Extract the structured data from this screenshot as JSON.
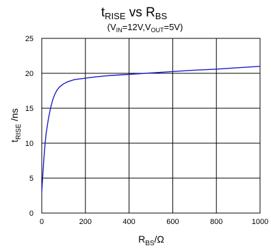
{
  "chart_data": {
    "type": "line",
    "title": {
      "base": "t",
      "sub": "RISE",
      "text": " vs R",
      "sub2": "BS"
    },
    "subtitle": {
      "p1": "(V",
      "s1": "IN",
      "p2": "=12V,V",
      "s2": "OUT",
      "p3": "=5V)"
    },
    "xlabel": {
      "base": "R",
      "sub": "BS",
      "rest": "/Ω"
    },
    "ylabel": {
      "base": "t",
      "sub": "RISE",
      "rest": " /ns"
    },
    "xlim": [
      0,
      1000
    ],
    "ylim": [
      0,
      25
    ],
    "x_ticks": [
      "0",
      "200",
      "400",
      "600",
      "800",
      "1000"
    ],
    "y_ticks": [
      "0",
      "5",
      "10",
      "15",
      "20",
      "25"
    ],
    "x_tick_values": [
      0,
      200,
      400,
      600,
      800,
      1000
    ],
    "y_tick_values": [
      0,
      5,
      10,
      15,
      20,
      25
    ],
    "grid": true,
    "line_color": "#1a1acc",
    "series": [
      {
        "x": [
          0,
          5,
          10,
          15,
          20,
          30,
          40,
          50,
          60,
          70,
          80,
          100,
          120,
          150,
          200,
          250,
          300,
          350,
          400,
          450,
          500,
          600,
          700,
          800,
          900,
          1000
        ],
        "y": [
          3.0,
          5.5,
          7.9,
          9.8,
          11.4,
          13.4,
          15.0,
          16.2,
          17.0,
          17.6,
          18.0,
          18.5,
          18.8,
          19.1,
          19.3,
          19.5,
          19.65,
          19.75,
          19.85,
          19.95,
          20.05,
          20.25,
          20.45,
          20.6,
          20.8,
          21.0
        ]
      }
    ]
  }
}
